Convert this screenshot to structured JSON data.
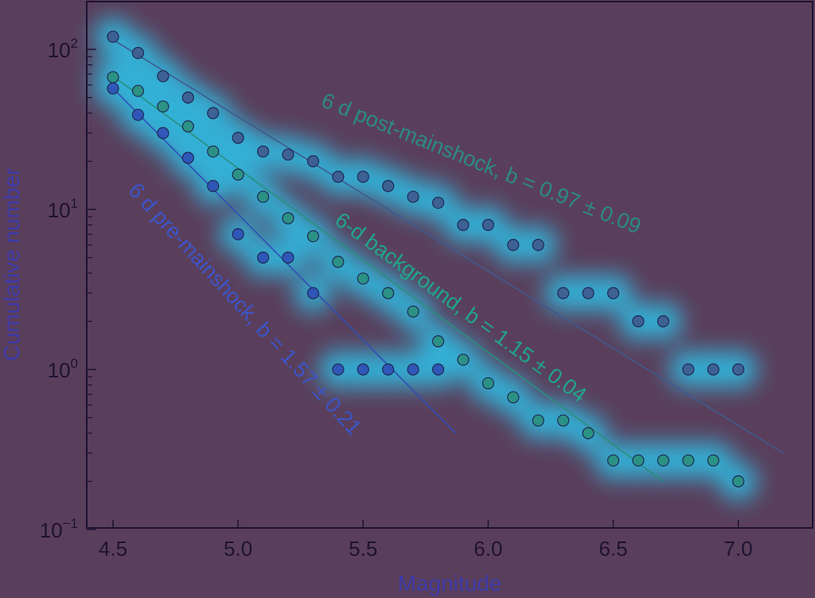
{
  "chart_data": {
    "type": "scatter",
    "title": "",
    "xlabel": "Magnitude",
    "ylabel": "Cumulative number",
    "xlim": [
      4.4,
      7.3
    ],
    "ylim": [
      0.1,
      200
    ],
    "yscale": "log",
    "grid": false,
    "x_ticks": [
      "4.5",
      "5.0",
      "5.5",
      "6.0",
      "6.5",
      "7.0"
    ],
    "y_ticks": [
      {
        "base": "10",
        "exp": "2"
      },
      {
        "base": "10",
        "exp": "1"
      },
      {
        "base": "10",
        "exp": "0"
      },
      {
        "base": "10",
        "exp": "−1"
      }
    ],
    "colors": {
      "post": "#3f5a8e",
      "background": "#2a8f7c",
      "pre": "#2f4fb5",
      "heat": "#25d6ff"
    },
    "series": [
      {
        "name": "6 d post-mainshock",
        "label": "6 d post-mainshock, b = 0.97 ± 0.09",
        "color_key": "post",
        "x": [
          4.5,
          4.6,
          4.7,
          4.8,
          4.9,
          5.0,
          5.1,
          5.2,
          5.3,
          5.4,
          5.5,
          5.6,
          5.7,
          5.8,
          5.9,
          6.0,
          6.1,
          6.2,
          6.3,
          6.4,
          6.5,
          6.6,
          6.7,
          6.8,
          6.9,
          7.0
        ],
        "y": [
          120,
          95,
          68,
          50,
          40,
          28,
          23,
          22,
          20,
          16,
          16,
          14,
          12,
          11,
          8,
          8,
          6,
          6,
          3,
          3,
          3,
          2,
          2,
          1,
          1,
          1
        ],
        "fit": {
          "x": [
            4.5,
            7.18
          ],
          "y": [
            115,
            0.3
          ]
        }
      },
      {
        "name": "6-d background",
        "label": "6-d background, b = 1.15 ± 0.04",
        "color_key": "background",
        "x": [
          4.5,
          4.6,
          4.7,
          4.8,
          4.9,
          5.0,
          5.1,
          5.2,
          5.3,
          5.4,
          5.5,
          5.6,
          5.7,
          5.8,
          5.9,
          6.0,
          6.1,
          6.2,
          6.3,
          6.4,
          6.5,
          6.6,
          6.7,
          6.8,
          6.9,
          7.0
        ],
        "y": [
          67,
          55,
          44,
          33,
          23,
          16.5,
          12,
          8.8,
          6.8,
          4.7,
          3.7,
          3.0,
          2.3,
          1.5,
          1.15,
          0.82,
          0.67,
          0.48,
          0.48,
          0.4,
          0.27,
          0.27,
          0.27,
          0.27,
          0.27,
          0.2
        ],
        "fit": {
          "x": [
            4.5,
            6.7
          ],
          "y": [
            68,
            0.2
          ]
        }
      },
      {
        "name": "6 d pre-mainshock",
        "label": "6 d pre-mainshock, b = 1.57 ± 0.21",
        "color_key": "pre",
        "x": [
          4.5,
          4.6,
          4.7,
          4.8,
          4.9,
          5.0,
          5.1,
          5.2,
          5.3,
          5.4,
          5.5,
          5.6,
          5.7,
          5.8
        ],
        "y": [
          57,
          39,
          30,
          21,
          14,
          7,
          5,
          5,
          3,
          1,
          1,
          1,
          1,
          1
        ],
        "fit": {
          "x": [
            4.5,
            5.87
          ],
          "y": [
            57,
            0.4
          ]
        }
      }
    ]
  }
}
